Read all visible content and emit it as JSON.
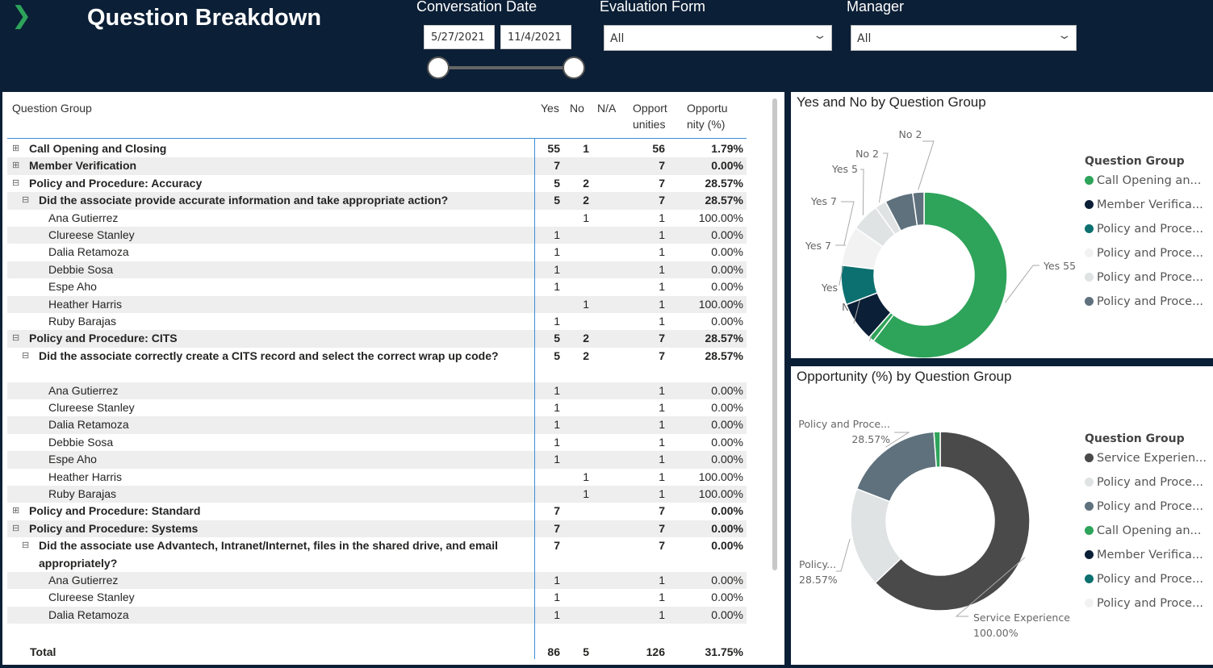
{
  "header": {
    "title": "Question Breakdown",
    "logo": "chevron-right-icon"
  },
  "filters": {
    "date": {
      "label": "Conversation Date",
      "start": "5/27/2021",
      "end": "11/4/2021"
    },
    "form": {
      "label": "Evaluation Form",
      "value": "All"
    },
    "manager": {
      "label": "Manager",
      "value": "All"
    }
  },
  "table": {
    "headers": {
      "group": "Question Group",
      "yes": "Yes",
      "no": "No",
      "na": "N/A",
      "opp": "Opport unities",
      "pct": "Opportu nity (%)"
    },
    "rows": [
      {
        "level": 0,
        "exp": "⊞",
        "label": "Call Opening and Closing",
        "yes": "55",
        "no": "1",
        "na": "",
        "opp": "56",
        "pct": "1.79%"
      },
      {
        "level": 0,
        "exp": "⊞",
        "label": "Member Verification",
        "yes": "7",
        "no": "",
        "na": "",
        "opp": "7",
        "pct": "0.00%"
      },
      {
        "level": 0,
        "exp": "⊟",
        "label": "Policy and Procedure: Accuracy",
        "yes": "5",
        "no": "2",
        "na": "",
        "opp": "7",
        "pct": "28.57%"
      },
      {
        "level": 1,
        "exp": "⊟",
        "label": "Did the associate provide accurate information and take appropriate action?",
        "yes": "5",
        "no": "2",
        "na": "",
        "opp": "7",
        "pct": "28.57%"
      },
      {
        "level": 2,
        "label": "Ana Gutierrez",
        "yes": "",
        "no": "1",
        "na": "",
        "opp": "1",
        "pct": "100.00%"
      },
      {
        "level": 2,
        "label": "Clureese Stanley",
        "yes": "1",
        "no": "",
        "na": "",
        "opp": "1",
        "pct": "0.00%"
      },
      {
        "level": 2,
        "label": "Dalia Retamoza",
        "yes": "1",
        "no": "",
        "na": "",
        "opp": "1",
        "pct": "0.00%"
      },
      {
        "level": 2,
        "label": "Debbie Sosa",
        "yes": "1",
        "no": "",
        "na": "",
        "opp": "1",
        "pct": "0.00%"
      },
      {
        "level": 2,
        "label": "Espe Aho",
        "yes": "1",
        "no": "",
        "na": "",
        "opp": "1",
        "pct": "0.00%"
      },
      {
        "level": 2,
        "label": "Heather Harris",
        "yes": "",
        "no": "1",
        "na": "",
        "opp": "1",
        "pct": "100.00%"
      },
      {
        "level": 2,
        "label": "Ruby Barajas",
        "yes": "1",
        "no": "",
        "na": "",
        "opp": "1",
        "pct": "0.00%"
      },
      {
        "level": 0,
        "exp": "⊟",
        "label": "Policy and Procedure: CITS",
        "yes": "5",
        "no": "2",
        "na": "",
        "opp": "7",
        "pct": "28.57%"
      },
      {
        "level": 1,
        "exp": "⊟",
        "label": "Did the associate correctly create a CITS record and select the correct wrap up code?",
        "yes": "5",
        "no": "2",
        "na": "",
        "opp": "7",
        "pct": "28.57%",
        "tall": true
      },
      {
        "level": 2,
        "label": "Ana Gutierrez",
        "yes": "1",
        "no": "",
        "na": "",
        "opp": "1",
        "pct": "0.00%"
      },
      {
        "level": 2,
        "label": "Clureese Stanley",
        "yes": "1",
        "no": "",
        "na": "",
        "opp": "1",
        "pct": "0.00%"
      },
      {
        "level": 2,
        "label": "Dalia Retamoza",
        "yes": "1",
        "no": "",
        "na": "",
        "opp": "1",
        "pct": "0.00%"
      },
      {
        "level": 2,
        "label": "Debbie Sosa",
        "yes": "1",
        "no": "",
        "na": "",
        "opp": "1",
        "pct": "0.00%"
      },
      {
        "level": 2,
        "label": "Espe Aho",
        "yes": "1",
        "no": "",
        "na": "",
        "opp": "1",
        "pct": "0.00%"
      },
      {
        "level": 2,
        "label": "Heather Harris",
        "yes": "",
        "no": "1",
        "na": "",
        "opp": "1",
        "pct": "100.00%"
      },
      {
        "level": 2,
        "label": "Ruby Barajas",
        "yes": "",
        "no": "1",
        "na": "",
        "opp": "1",
        "pct": "100.00%"
      },
      {
        "level": 0,
        "exp": "⊞",
        "label": "Policy and Procedure: Standard",
        "yes": "7",
        "no": "",
        "na": "",
        "opp": "7",
        "pct": "0.00%"
      },
      {
        "level": 0,
        "exp": "⊟",
        "label": "Policy and Procedure: Systems",
        "yes": "7",
        "no": "",
        "na": "",
        "opp": "7",
        "pct": "0.00%"
      },
      {
        "level": 1,
        "exp": "⊟",
        "label": "Did the associate use Advantech, Intranet/Internet, files in the shared drive, and email appropriately?",
        "yes": "7",
        "no": "",
        "na": "",
        "opp": "7",
        "pct": "0.00%",
        "tall": true
      },
      {
        "level": 2,
        "label": "Ana Gutierrez",
        "yes": "1",
        "no": "",
        "na": "",
        "opp": "1",
        "pct": "0.00%"
      },
      {
        "level": 2,
        "label": "Clureese Stanley",
        "yes": "1",
        "no": "",
        "na": "",
        "opp": "1",
        "pct": "0.00%"
      },
      {
        "level": 2,
        "label": "Dalia Retamoza",
        "yes": "1",
        "no": "",
        "na": "",
        "opp": "1",
        "pct": "0.00%"
      }
    ],
    "total": {
      "label": "Total",
      "yes": "86",
      "no": "5",
      "na": "",
      "opp": "126",
      "pct": "31.75%"
    }
  },
  "chart_data": [
    {
      "type": "pie",
      "title": "Yes and No by Question Group",
      "donut": true,
      "legend_title": "Question Group",
      "legend_position": "right",
      "legend": [
        {
          "label": "Call Opening an...",
          "color": "#2ea35a"
        },
        {
          "label": "Member Verifica...",
          "color": "#0b1f36"
        },
        {
          "label": "Policy and Proce...",
          "color": "#0d7070"
        },
        {
          "label": "Policy and Proce...",
          "color": "#f2f2f2"
        },
        {
          "label": "Policy and Proce...",
          "color": "#dfe3e3"
        },
        {
          "label": "Policy and Proce...",
          "color": "#5e717d"
        }
      ],
      "slices": [
        {
          "label": "Yes 55",
          "value": 55,
          "color": "#2ea35a"
        },
        {
          "label": "No 1",
          "value": 1,
          "color": "#2ea35a"
        },
        {
          "label": "Yes 7",
          "value": 7,
          "color": "#0b1f36"
        },
        {
          "label": "Yes 7",
          "value": 7,
          "color": "#0d7070"
        },
        {
          "label": "Yes 7",
          "value": 7,
          "color": "#f2f2f2"
        },
        {
          "label": "Yes 5",
          "value": 5,
          "color": "#dfe3e3"
        },
        {
          "label": "No 2",
          "value": 2,
          "color": "#dfe3e3"
        },
        {
          "label": "Yes 5",
          "value": 5,
          "color": "#5e717d"
        },
        {
          "label": "No 2",
          "value": 2,
          "color": "#5e717d"
        }
      ]
    },
    {
      "type": "pie",
      "title": "Opportunity (%) by Question Group",
      "donut": true,
      "legend_title": "Question Group",
      "legend_position": "right",
      "legend": [
        {
          "label": "Service Experien...",
          "color": "#4a4a4a"
        },
        {
          "label": "Policy and Proce...",
          "color": "#dfe3e3"
        },
        {
          "label": "Policy and Proce...",
          "color": "#5e717d"
        },
        {
          "label": "Call Opening an...",
          "color": "#2ea35a"
        },
        {
          "label": "Member Verifica...",
          "color": "#0b1f36"
        },
        {
          "label": "Policy and Proce...",
          "color": "#0d7070"
        },
        {
          "label": "Policy and Proce...",
          "color": "#f2f2f2"
        }
      ],
      "slices": [
        {
          "label": "Service Experience",
          "pct": "100.00%",
          "value": 100,
          "color": "#4a4a4a"
        },
        {
          "label": "Policy...",
          "pct": "28.57%",
          "value": 28.57,
          "color": "#dfe3e3"
        },
        {
          "label": "Policy and Proce...",
          "pct": "28.57%",
          "value": 28.57,
          "color": "#5e717d"
        },
        {
          "label": "",
          "pct": "",
          "value": 1.79,
          "color": "#2ea35a"
        }
      ]
    }
  ]
}
